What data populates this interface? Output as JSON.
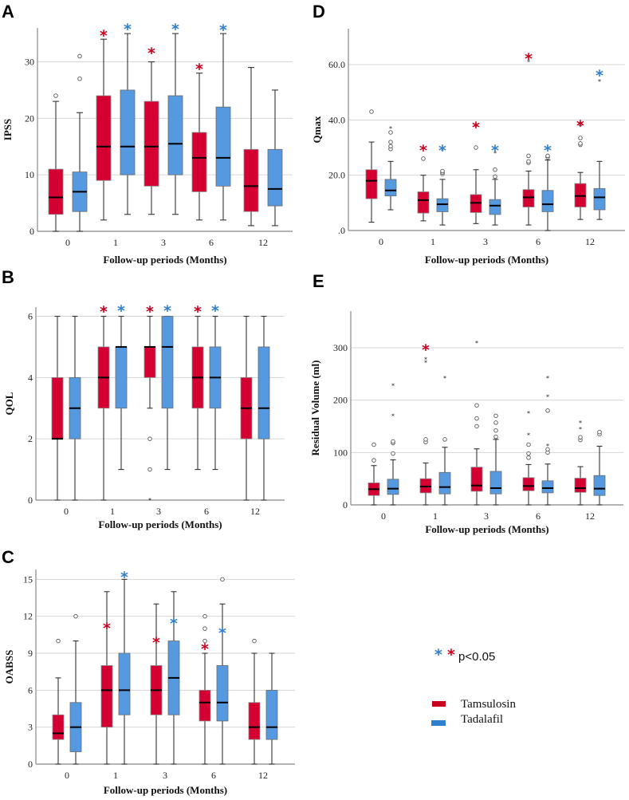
{
  "chart_data": [
    {
      "id": "A",
      "type": "box",
      "panel_label": "A",
      "ylabel": "IPSS",
      "xlabel": "Follow-up periods (Months)",
      "categories": [
        "0",
        "1",
        "3",
        "6",
        "12"
      ],
      "ylim": [
        0,
        36
      ],
      "yticks": [
        0,
        10,
        20,
        30
      ],
      "ytick_labels": [
        "0",
        "10",
        "20",
        "30"
      ],
      "grid": true,
      "series": [
        {
          "name": "Tamsulosin",
          "boxes": [
            {
              "min": 0,
              "q1": 3,
              "median": 6,
              "q3": 11,
              "max": 23,
              "outliers": [
                24
              ],
              "extremes": [],
              "significant": false
            },
            {
              "min": 2,
              "q1": 9,
              "median": 15,
              "q3": 24,
              "max": 34,
              "outliers": [],
              "extremes": [],
              "significant": true
            },
            {
              "min": 3,
              "q1": 8,
              "median": 15,
              "q3": 23,
              "max": 30,
              "outliers": [],
              "extremes": [],
              "significant": true
            },
            {
              "min": 2,
              "q1": 7,
              "median": 13,
              "q3": 17.5,
              "max": 28,
              "outliers": [],
              "extremes": [],
              "significant": true
            },
            {
              "min": 1,
              "q1": 3.5,
              "median": 8,
              "q3": 14.5,
              "max": 29,
              "outliers": [],
              "extremes": [],
              "significant": false
            }
          ]
        },
        {
          "name": "Tadalafil",
          "boxes": [
            {
              "min": 0,
              "q1": 3.5,
              "median": 7,
              "q3": 10.5,
              "max": 21,
              "outliers": [
                27,
                31
              ],
              "extremes": [],
              "significant": false
            },
            {
              "min": 3,
              "q1": 10,
              "median": 15,
              "q3": 25,
              "max": 35,
              "outliers": [],
              "extremes": [],
              "significant": true
            },
            {
              "min": 3,
              "q1": 10,
              "median": 15.5,
              "q3": 24,
              "max": 35,
              "outliers": [],
              "extremes": [],
              "significant": true
            },
            {
              "min": 2,
              "q1": 8,
              "median": 13,
              "q3": 22,
              "max": 35,
              "outliers": [],
              "extremes": [],
              "significant": true
            },
            {
              "min": 1,
              "q1": 4.5,
              "median": 7.5,
              "q3": 14.5,
              "max": 25,
              "outliers": [],
              "extremes": [],
              "significant": false
            }
          ]
        }
      ]
    },
    {
      "id": "B",
      "type": "box",
      "panel_label": "B",
      "ylabel": "QOL",
      "xlabel": "Follow-up periods (Months)",
      "categories": [
        "0",
        "1",
        "3",
        "6",
        "12"
      ],
      "ylim": [
        0,
        6.3
      ],
      "yticks": [
        0,
        2,
        4,
        6
      ],
      "ytick_labels": [
        "0",
        "2",
        "4",
        "6"
      ],
      "grid": true,
      "series": [
        {
          "name": "Tamsulosin",
          "boxes": [
            {
              "min": 0,
              "q1": 2,
              "median": 2,
              "q3": 4,
              "max": 6,
              "outliers": [],
              "extremes": [],
              "significant": false
            },
            {
              "min": 0,
              "q1": 3,
              "median": 4,
              "q3": 5,
              "max": 6,
              "outliers": [],
              "extremes": [],
              "significant": true
            },
            {
              "min": 3,
              "q1": 4,
              "median": 5,
              "q3": 5,
              "max": 6,
              "outliers": [
                2,
                1
              ],
              "extremes": [
                0
              ],
              "significant": true
            },
            {
              "min": 1,
              "q1": 3,
              "median": 4,
              "q3": 5,
              "max": 6,
              "outliers": [],
              "extremes": [],
              "significant": true
            },
            {
              "min": 0,
              "q1": 2,
              "median": 3,
              "q3": 4,
              "max": 6,
              "outliers": [],
              "extremes": [],
              "significant": false
            }
          ]
        },
        {
          "name": "Tadalafil",
          "boxes": [
            {
              "min": 0,
              "q1": 2,
              "median": 3,
              "q3": 4,
              "max": 6,
              "outliers": [],
              "extremes": [],
              "significant": false
            },
            {
              "min": 1,
              "q1": 3,
              "median": 5,
              "q3": 5,
              "max": 6,
              "outliers": [],
              "extremes": [],
              "significant": true
            },
            {
              "min": 1,
              "q1": 3,
              "median": 5,
              "q3": 6,
              "max": 6,
              "outliers": [],
              "extremes": [],
              "significant": true
            },
            {
              "min": 1,
              "q1": 3,
              "median": 4,
              "q3": 5,
              "max": 6,
              "outliers": [],
              "extremes": [],
              "significant": true
            },
            {
              "min": 0,
              "q1": 2,
              "median": 3,
              "q3": 5,
              "max": 6,
              "outliers": [],
              "extremes": [],
              "significant": false
            }
          ]
        }
      ]
    },
    {
      "id": "C",
      "type": "box",
      "panel_label": "C",
      "ylabel": "OABSS",
      "xlabel": "Follow-up periods (Months)",
      "categories": [
        "0",
        "1",
        "3",
        "6",
        "12"
      ],
      "ylim": [
        0,
        15.8
      ],
      "yticks": [
        0,
        3,
        6,
        9,
        12,
        15
      ],
      "ytick_labels": [
        "0",
        "3",
        "6",
        "9",
        "12",
        "15"
      ],
      "grid": true,
      "series": [
        {
          "name": "Tamsulosin",
          "boxes": [
            {
              "min": 0,
              "q1": 2,
              "median": 2.5,
              "q3": 4,
              "max": 7,
              "outliers": [
                10
              ],
              "extremes": [],
              "significant": false
            },
            {
              "min": 0,
              "q1": 3,
              "median": 6,
              "q3": 8,
              "max": 14,
              "outliers": [],
              "extremes": [],
              "significant": true
            },
            {
              "min": 0,
              "q1": 4,
              "median": 6,
              "q3": 8,
              "max": 13,
              "outliers": [],
              "extremes": [],
              "significant": true
            },
            {
              "min": 0,
              "q1": 3.5,
              "median": 5,
              "q3": 6,
              "max": 9,
              "outliers": [
                10,
                11,
                12
              ],
              "extremes": [],
              "significant": true
            },
            {
              "min": 0,
              "q1": 2,
              "median": 3,
              "q3": 5,
              "max": 9,
              "outliers": [
                10
              ],
              "extremes": [],
              "significant": false
            }
          ]
        },
        {
          "name": "Tadalafil",
          "boxes": [
            {
              "min": 0,
              "q1": 1,
              "median": 3,
              "q3": 5,
              "max": 10,
              "outliers": [
                12
              ],
              "extremes": [],
              "significant": false
            },
            {
              "min": 0,
              "q1": 4,
              "median": 6,
              "q3": 9,
              "max": 15,
              "outliers": [],
              "extremes": [],
              "significant": true
            },
            {
              "min": 0,
              "q1": 4,
              "median": 7,
              "q3": 10,
              "max": 14,
              "outliers": [],
              "extremes": [],
              "significant": true
            },
            {
              "min": 0,
              "q1": 3.5,
              "median": 5,
              "q3": 8,
              "max": 13,
              "outliers": [
                15
              ],
              "extremes": [],
              "significant": true
            },
            {
              "min": 0,
              "q1": 2,
              "median": 3,
              "q3": 6,
              "max": 9,
              "outliers": [],
              "extremes": [],
              "significant": false
            }
          ]
        }
      ]
    },
    {
      "id": "D",
      "type": "box",
      "panel_label": "D",
      "ylabel": "Qmax",
      "xlabel": "Follow-up periods (Months)",
      "categories": [
        "0",
        "1",
        "3",
        "6",
        "12"
      ],
      "ylim": [
        0,
        73
      ],
      "yticks": [
        0,
        20,
        40,
        60
      ],
      "ytick_labels": [
        ".0",
        "20.0",
        "40.0",
        "60.0"
      ],
      "grid": true,
      "series": [
        {
          "name": "Tamsulosin",
          "boxes": [
            {
              "min": 3,
              "q1": 11.5,
              "median": 18,
              "q3": 22,
              "max": 32,
              "outliers": [
                43
              ],
              "extremes": [],
              "significant": false
            },
            {
              "min": 3.5,
              "q1": 6.3,
              "median": 11,
              "q3": 14,
              "max": 20,
              "outliers": [
                26
              ],
              "extremes": [],
              "significant": true
            },
            {
              "min": 2.5,
              "q1": 6.5,
              "median": 10,
              "q3": 13,
              "max": 22,
              "outliers": [
                30
              ],
              "extremes": [
                37.5
              ],
              "significant": true
            },
            {
              "min": 2,
              "q1": 8.5,
              "median": 12,
              "q3": 14.8,
              "max": 21.5,
              "outliers": [
                24.5,
                25,
                27
              ],
              "extremes": [
                61
              ],
              "significant": true
            },
            {
              "min": 4,
              "q1": 8.5,
              "median": 12.5,
              "q3": 17,
              "max": 21,
              "outliers": [
                31,
                31.5,
                33.5,
                38.5
              ],
              "extremes": [],
              "significant": true
            }
          ]
        },
        {
          "name": "Tadalafil",
          "boxes": [
            {
              "min": 7.5,
              "q1": 12.5,
              "median": 14.5,
              "q3": 18.5,
              "max": 25,
              "outliers": [
                29.5,
                30.5,
                32,
                35.5
              ],
              "extremes": [
                37
              ],
              "significant": false
            },
            {
              "min": 2,
              "q1": 6.8,
              "median": 9.5,
              "q3": 11.5,
              "max": 18.5,
              "outliers": [
                20.5,
                21,
                21.5
              ],
              "extremes": [
                29
              ],
              "significant": true
            },
            {
              "min": 2,
              "q1": 5.8,
              "median": 9,
              "q3": 11.2,
              "max": 18.5,
              "outliers": [
                19.5,
                22
              ],
              "extremes": [
                28
              ],
              "significant": true
            },
            {
              "min": 0,
              "q1": 6.8,
              "median": 9.5,
              "q3": 14.5,
              "max": 25.5,
              "outliers": [
                26.5,
                27
              ],
              "extremes": [],
              "significant": true
            },
            {
              "min": 4,
              "q1": 7.5,
              "median": 12,
              "q3": 15.2,
              "max": 25,
              "outliers": [],
              "extremes": [
                54
              ],
              "significant": true
            }
          ]
        }
      ]
    },
    {
      "id": "E",
      "type": "box",
      "panel_label": "E",
      "ylabel": "Residual Volume (ml)",
      "xlabel": "Follow-up periods (Months)",
      "categories": [
        "0",
        "1",
        "3",
        "6",
        "12"
      ],
      "ylim": [
        0,
        370
      ],
      "yticks": [
        0,
        100,
        200,
        300
      ],
      "ytick_labels": [
        "0",
        "100",
        "200",
        "300"
      ],
      "grid": true,
      "series": [
        {
          "name": "Tamsulosin",
          "boxes": [
            {
              "min": 0,
              "q1": 18,
              "median": 30,
              "q3": 42,
              "max": 75,
              "outliers": [
                85,
                115
              ],
              "extremes": [],
              "significant": false
            },
            {
              "min": 0,
              "q1": 23,
              "median": 35,
              "q3": 50,
              "max": 80,
              "outliers": [
                120,
                125
              ],
              "extremes": [
                272,
                278
              ],
              "significant": true
            },
            {
              "min": 0,
              "q1": 26,
              "median": 37,
              "q3": 72,
              "max": 107,
              "outliers": [
                150,
                165,
                190
              ],
              "extremes": [
                309
              ],
              "significant": false
            },
            {
              "min": 0,
              "q1": 27,
              "median": 36,
              "q3": 52,
              "max": 77,
              "outliers": [
                90,
                98,
                115
              ],
              "extremes": [
                133,
                175
              ],
              "significant": false
            },
            {
              "min": 0,
              "q1": 24,
              "median": 32,
              "q3": 51,
              "max": 73,
              "outliers": [
                124,
                129
              ],
              "extremes": [
                145,
                157
              ],
              "significant": false
            }
          ]
        },
        {
          "name": "Tadalafil",
          "boxes": [
            {
              "min": 0,
              "q1": 20,
              "median": 31,
              "q3": 49,
              "max": 86,
              "outliers": [
                98,
                118,
                121
              ],
              "extremes": [
                170,
                228
              ],
              "significant": false
            },
            {
              "min": 0,
              "q1": 21,
              "median": 34,
              "q3": 62,
              "max": 110,
              "outliers": [
                125
              ],
              "extremes": [
                242
              ],
              "significant": false
            },
            {
              "min": 0,
              "q1": 21,
              "median": 32,
              "q3": 64,
              "max": 125,
              "outliers": [
                130,
                142,
                157,
                170
              ],
              "extremes": [],
              "significant": false
            },
            {
              "min": 0,
              "q1": 23,
              "median": 32,
              "q3": 46,
              "max": 78,
              "outliers": [
                100,
                106,
                180
              ],
              "extremes": [
                113,
                206,
                242
              ],
              "significant": false
            },
            {
              "min": 0,
              "q1": 18,
              "median": 31,
              "q3": 56,
              "max": 112,
              "outliers": [
                135,
                139
              ],
              "extremes": [],
              "significant": false
            }
          ]
        }
      ]
    }
  ],
  "legend": {
    "significance_label": "p<0.05",
    "items": [
      {
        "name": "Tamsulosin",
        "color": "#d50032"
      },
      {
        "name": "Tadalafil",
        "color": "#5599e0"
      }
    ]
  },
  "colors": {
    "tamsulosin": "#d50032",
    "tadalafil": "#5599e0",
    "sig_tamsulosin": "#c8001e",
    "sig_tadalafil": "#2f7fcf"
  }
}
